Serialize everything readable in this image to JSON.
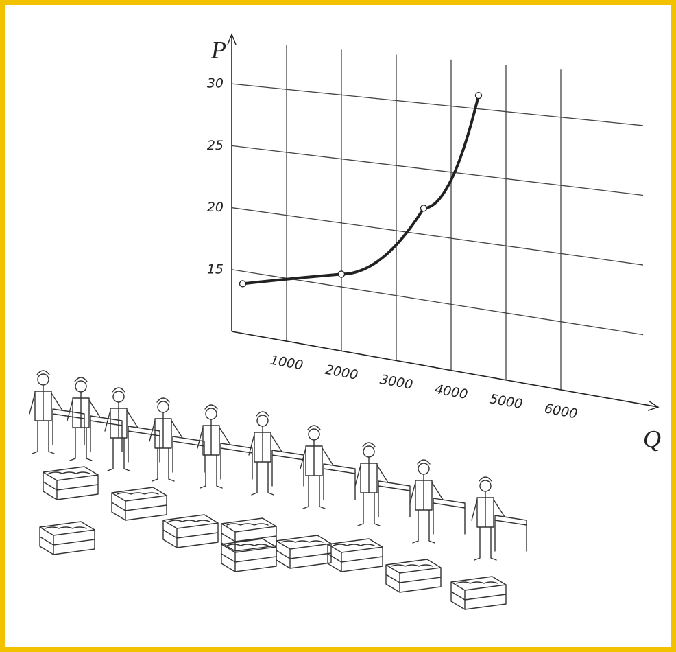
{
  "chart_data": {
    "type": "line",
    "x_label": "Q",
    "y_label": "P",
    "x": [
      200,
      2000,
      3500,
      4500
    ],
    "values": [
      14,
      16,
      22,
      31
    ],
    "color": "#222222",
    "xlim": [
      0,
      7500
    ],
    "ylim": [
      10,
      33
    ],
    "xticks": [
      1000,
      2000,
      3000,
      4000,
      5000,
      6000
    ],
    "yticks": [
      15,
      20,
      25,
      30
    ],
    "grid": true
  }
}
